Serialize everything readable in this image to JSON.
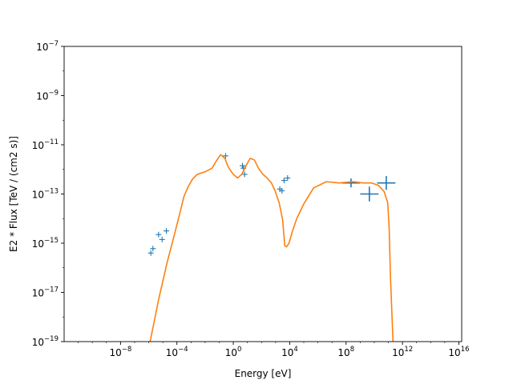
{
  "chart_data": {
    "type": "scatter",
    "title": "",
    "xlabel": "Energy [eV]",
    "ylabel": "E2 * Flux [TeV / (cm2 s)]",
    "xscale": "log",
    "yscale": "log",
    "xlim_exp": [
      -12,
      16.2
    ],
    "ylim_exp": [
      -19,
      -7
    ],
    "grid": false,
    "legend": "none",
    "x_ticks": [
      {
        "exp": -8,
        "base": "10",
        "sup": "−8"
      },
      {
        "exp": -4,
        "base": "10",
        "sup": "−4"
      },
      {
        "exp": 0,
        "base": "10",
        "sup": "0"
      },
      {
        "exp": 4,
        "base": "10",
        "sup": "4"
      },
      {
        "exp": 8,
        "base": "10",
        "sup": "8"
      },
      {
        "exp": 12,
        "base": "10",
        "sup": "12"
      },
      {
        "exp": 16,
        "base": "10",
        "sup": "16"
      }
    ],
    "y_ticks": [
      {
        "exp": -19,
        "base": "10",
        "sup": "−19"
      },
      {
        "exp": -17,
        "base": "10",
        "sup": "−17"
      },
      {
        "exp": -15,
        "base": "10",
        "sup": "−15"
      },
      {
        "exp": -13,
        "base": "10",
        "sup": "−13"
      },
      {
        "exp": -11,
        "base": "10",
        "sup": "−11"
      },
      {
        "exp": -9,
        "base": "10",
        "sup": "−9"
      },
      {
        "exp": -7,
        "base": "10",
        "sup": "−7"
      }
    ],
    "series": [
      {
        "type": "points",
        "color": "#1f77b4",
        "x_exp": [
          -5.85,
          -5.7,
          -5.3,
          -5.05,
          -4.75,
          -0.55,
          0.65,
          0.72,
          0.8,
          3.3,
          3.45,
          3.6,
          3.85
        ],
        "y_exp": [
          -15.4,
          -15.22,
          -14.65,
          -14.85,
          -14.5,
          -11.45,
          -11.85,
          -11.95,
          -12.2,
          -12.8,
          -12.87,
          -12.45,
          -12.35
        ],
        "err_x": [
          0,
          0,
          0,
          0,
          0,
          0,
          0,
          0,
          0,
          0,
          0,
          0,
          0
        ],
        "err_y": [
          0,
          0,
          0,
          0,
          0,
          0,
          0,
          0,
          0,
          0,
          0,
          0,
          0
        ]
      },
      {
        "type": "errorbars",
        "color": "#1f77b4",
        "x_exp": [
          8.35,
          9.65,
          10.85
        ],
        "y_exp": [
          -12.55,
          -13.0,
          -12.55
        ],
        "err_x": [
          0.65,
          0.65,
          0.65
        ],
        "err_y": [
          0.18,
          0.3,
          0.28
        ]
      },
      {
        "type": "line",
        "color": "#ff7f0e",
        "x_exp": [
          -5.9,
          -5.3,
          -4.7,
          -4.2,
          -3.8,
          -3.5,
          -3.2,
          -2.9,
          -2.6,
          -2.3,
          -2.0,
          -1.5,
          -1.2,
          -0.9,
          -0.6,
          -0.4,
          -0.2,
          0.0,
          0.3,
          0.6,
          0.9,
          1.2,
          1.5,
          1.8,
          2.1,
          2.4,
          2.7,
          2.95,
          3.25,
          3.5,
          3.65,
          3.78,
          3.95,
          4.2,
          4.5,
          5.0,
          5.7,
          6.6,
          7.5,
          8.5,
          9.2,
          9.8,
          10.3,
          10.7,
          10.95,
          11.05,
          11.15,
          11.3,
          11.33,
          11.35
        ],
        "y_exp": [
          -19,
          -17.3,
          -15.8,
          -14.7,
          -13.8,
          -13.1,
          -12.7,
          -12.4,
          -12.22,
          -12.15,
          -12.1,
          -11.95,
          -11.65,
          -11.4,
          -11.55,
          -11.85,
          -12.05,
          -12.2,
          -12.35,
          -12.2,
          -11.85,
          -11.55,
          -11.62,
          -11.97,
          -12.2,
          -12.35,
          -12.55,
          -12.85,
          -13.35,
          -14.05,
          -15.1,
          -15.15,
          -15.0,
          -14.5,
          -14.0,
          -13.4,
          -12.75,
          -12.5,
          -12.55,
          -12.5,
          -12.55,
          -12.55,
          -12.65,
          -12.9,
          -13.35,
          -14.3,
          -16.4,
          -18.6,
          -19.0,
          -19.5
        ]
      }
    ]
  }
}
